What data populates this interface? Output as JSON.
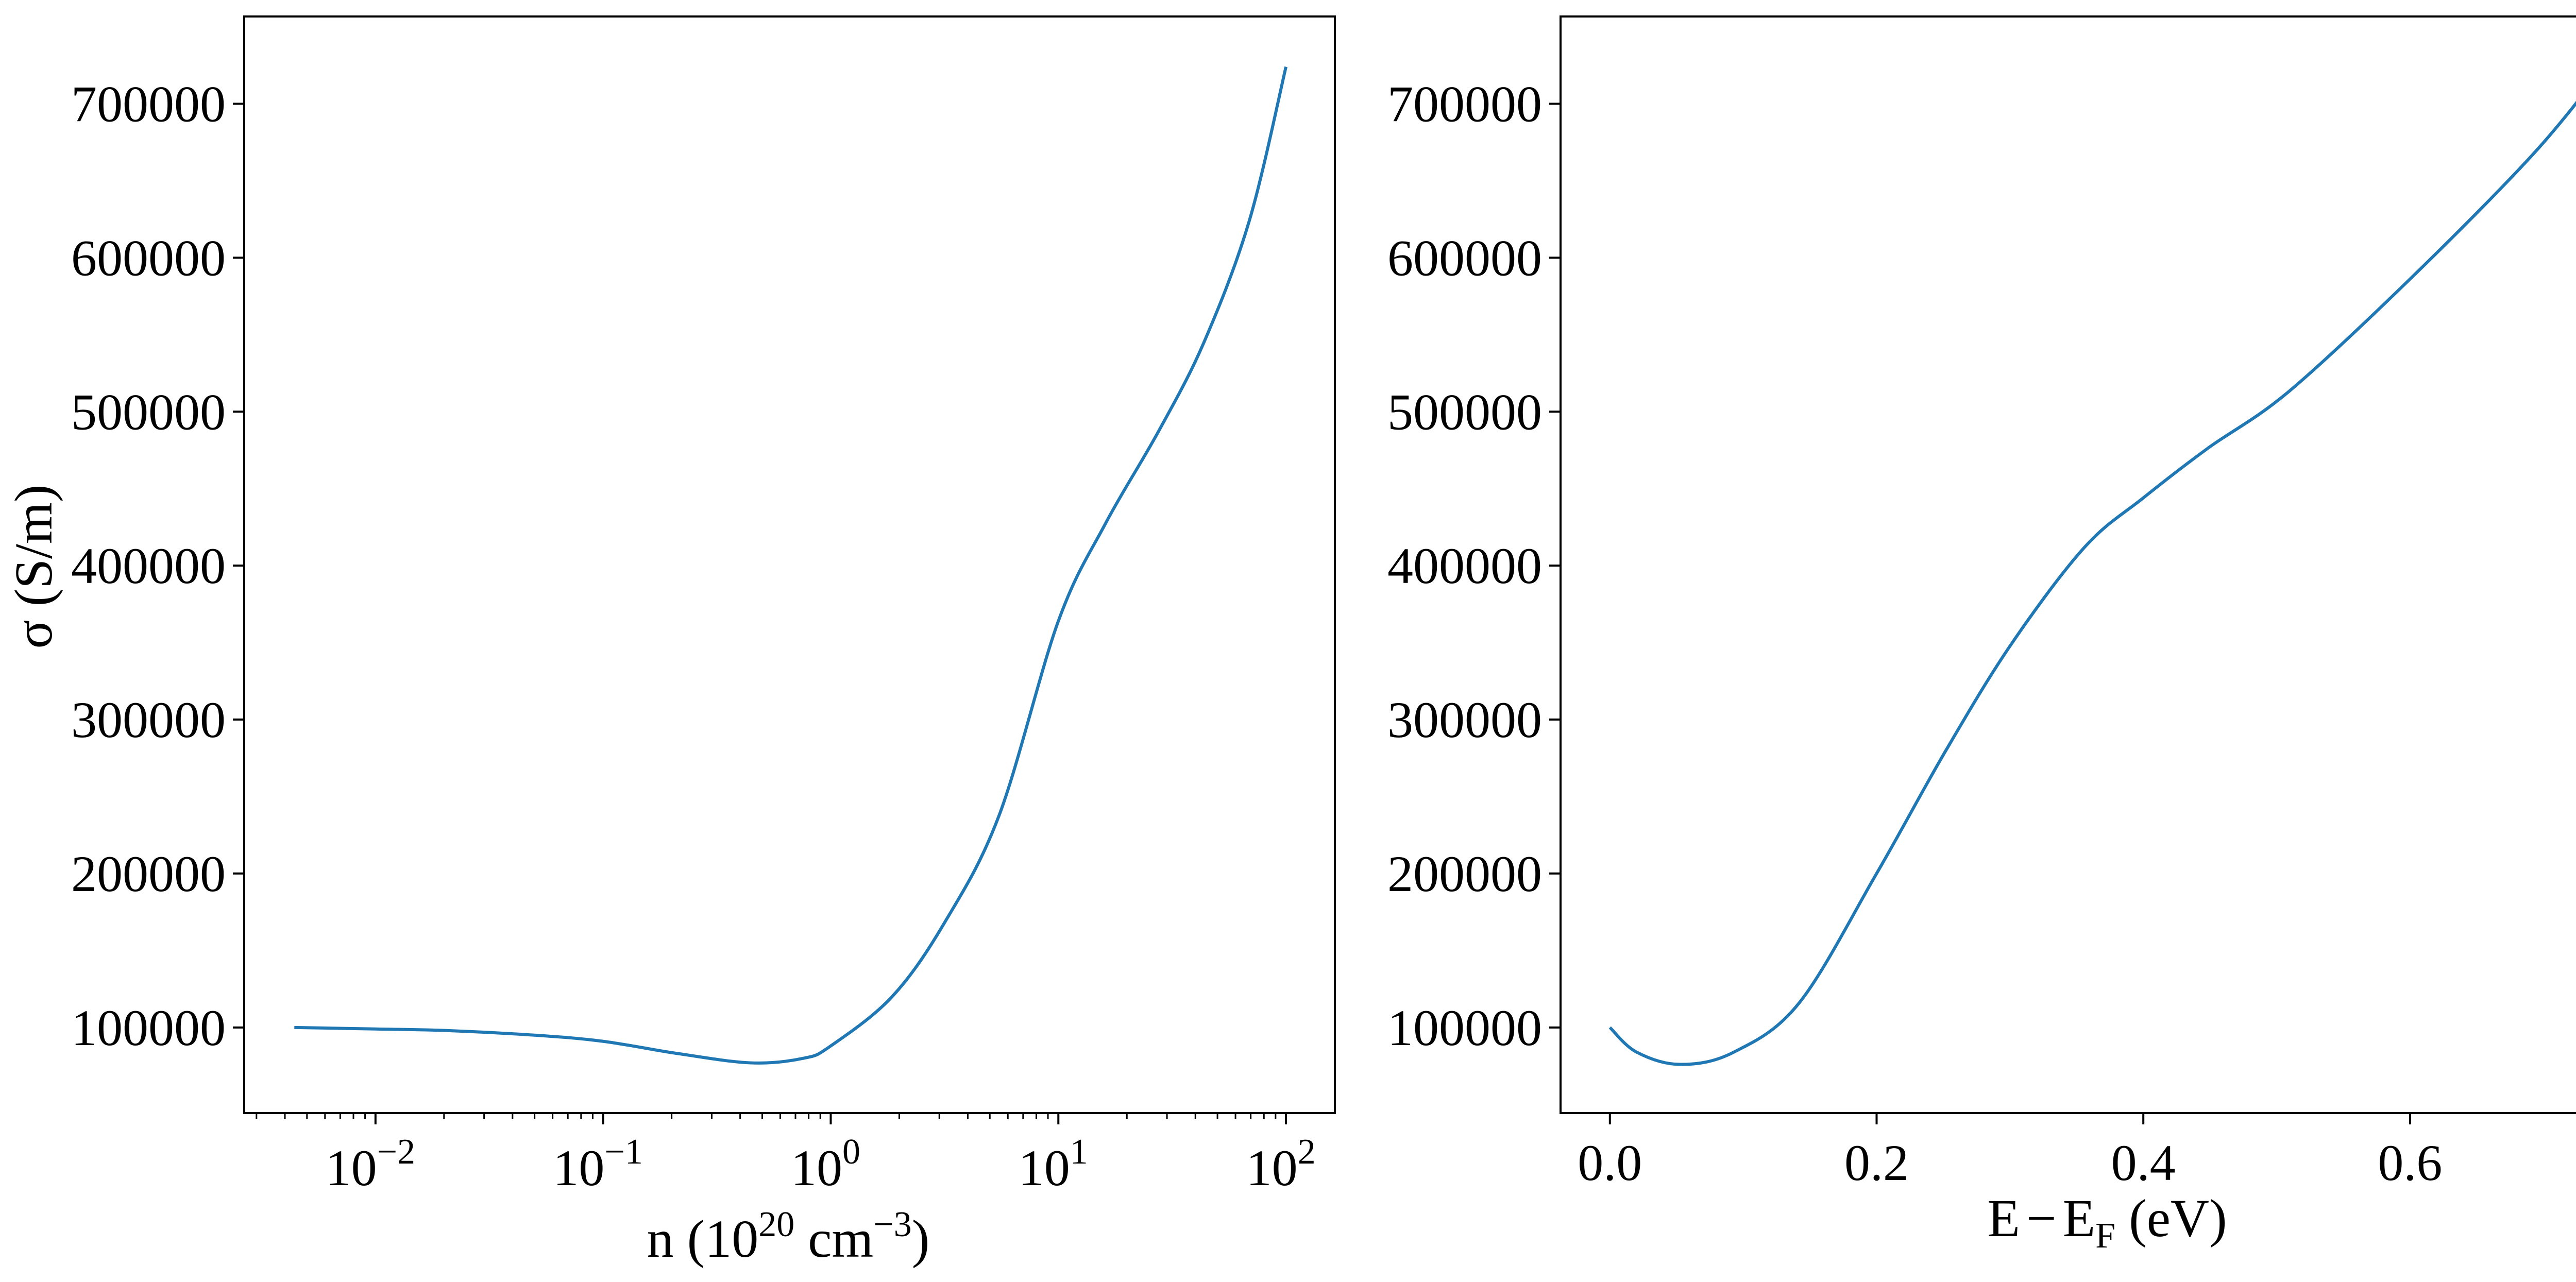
{
  "chart_data": [
    {
      "type": "line",
      "xlabel": {
        "base": "n (10",
        "sup1": "20",
        "mid": " cm",
        "sup2": "−3",
        "end": ")"
      },
      "ylabel": "σ (S/m)",
      "xscale": "log",
      "xlim": [
        0.00265,
        164
      ],
      "ylim": [
        44400,
        756700
      ],
      "grid": false,
      "x_ticks": [
        {
          "base": "10",
          "exp": "−2",
          "value": 0.01
        },
        {
          "base": "10",
          "exp": "−1",
          "value": 0.1
        },
        {
          "base": "10",
          "exp": "0",
          "value": 1
        },
        {
          "base": "10",
          "exp": "1",
          "value": 10
        },
        {
          "base": "10",
          "exp": "2",
          "value": 100
        }
      ],
      "y_ticks": [
        "100000",
        "200000",
        "300000",
        "400000",
        "500000",
        "600000",
        "700000"
      ],
      "color": "#1f77b4",
      "series": [
        {
          "x": [
            0.0044,
            0.01,
            0.0204,
            0.05,
            0.1,
            0.214,
            0.447,
            0.76,
            1.0,
            1.86,
            3.16,
            5.5,
            10,
            16.2,
            27.5,
            43.6,
            69,
            100
          ],
          "y": [
            100000,
            99000,
            98000,
            95000,
            91000,
            83000,
            77000,
            80000,
            88000,
            120000,
            168000,
            238000,
            364000,
            428000,
            487000,
            545000,
            624000,
            724000
          ]
        }
      ]
    },
    {
      "type": "line",
      "xlabel": {
        "a": "E",
        "minus": "−",
        "b": "E",
        "sub": "F",
        "end": " (eV)"
      },
      "ylabel": "",
      "xlim": [
        -0.037,
        0.782
      ],
      "ylim": [
        44400,
        756700
      ],
      "grid": false,
      "x_ticks": [
        "0.0",
        "0.2",
        "0.4",
        "0.6"
      ],
      "y_ticks": [
        "100000",
        "200000",
        "300000",
        "400000",
        "500000",
        "600000",
        "700000"
      ],
      "color": "#1f77b4",
      "series": [
        {
          "x": [
            0,
            0.02,
            0.053,
            0.093,
            0.142,
            0.2,
            0.252,
            0.301,
            0.356,
            0.4,
            0.448,
            0.509,
            0.601,
            0.692,
            0.746
          ],
          "y": [
            100000,
            84000,
            76000,
            84000,
            116000,
            200000,
            280000,
            349000,
            412000,
            444000,
            476000,
            513000,
            587000,
            667000,
            724000
          ]
        }
      ]
    }
  ]
}
